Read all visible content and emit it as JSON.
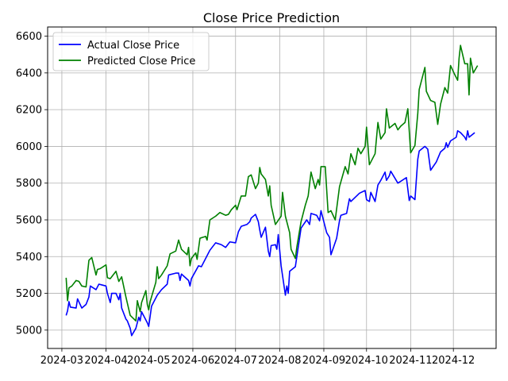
{
  "chart_data": {
    "type": "line",
    "title": "Close Price Prediction",
    "xlabel": "",
    "ylabel": "",
    "grid": true,
    "legend_position": "top-left",
    "x_tick_labels": [
      "2024-03",
      "2024-04",
      "2024-05",
      "2024-06",
      "2024-07",
      "2024-08",
      "2024-09",
      "2024-10",
      "2024-11",
      "2024-12"
    ],
    "y_tick_labels": [
      "5000",
      "5200",
      "5400",
      "5600",
      "5800",
      "6000",
      "6200",
      "6400",
      "6600"
    ],
    "ylim": [
      4900,
      6650
    ],
    "xlim": [
      "2024-02-20",
      "2024-12-31"
    ],
    "series": [
      {
        "name": "Actual Close Price",
        "color": "#0000ff",
        "points": [
          [
            "2024-03-04",
            5080
          ],
          [
            "2024-03-05",
            5105
          ],
          [
            "2024-03-06",
            5155
          ],
          [
            "2024-03-07",
            5125
          ],
          [
            "2024-03-11",
            5120
          ],
          [
            "2024-03-12",
            5170
          ],
          [
            "2024-03-15",
            5120
          ],
          [
            "2024-03-18",
            5140
          ],
          [
            "2024-03-20",
            5180
          ],
          [
            "2024-03-21",
            5240
          ],
          [
            "2024-03-25",
            5220
          ],
          [
            "2024-03-27",
            5250
          ],
          [
            "2024-04-01",
            5240
          ],
          [
            "2024-04-02",
            5200
          ],
          [
            "2024-04-04",
            5150
          ],
          [
            "2024-04-05",
            5200
          ],
          [
            "2024-04-08",
            5200
          ],
          [
            "2024-04-10",
            5165
          ],
          [
            "2024-04-11",
            5200
          ],
          [
            "2024-04-12",
            5120
          ],
          [
            "2024-04-15",
            5060
          ],
          [
            "2024-04-16",
            5050
          ],
          [
            "2024-04-18",
            5010
          ],
          [
            "2024-04-19",
            4970
          ],
          [
            "2024-04-22",
            5010
          ],
          [
            "2024-04-24",
            5070
          ],
          [
            "2024-04-25",
            5050
          ],
          [
            "2024-04-26",
            5100
          ],
          [
            "2024-04-30",
            5040
          ],
          [
            "2024-05-01",
            5020
          ],
          [
            "2024-05-03",
            5130
          ],
          [
            "2024-05-07",
            5190
          ],
          [
            "2024-05-10",
            5220
          ],
          [
            "2024-05-14",
            5250
          ],
          [
            "2024-05-15",
            5300
          ],
          [
            "2024-05-20",
            5310
          ],
          [
            "2024-05-22",
            5310
          ],
          [
            "2024-05-23",
            5270
          ],
          [
            "2024-05-24",
            5305
          ],
          [
            "2024-05-29",
            5270
          ],
          [
            "2024-05-30",
            5240
          ],
          [
            "2024-05-31",
            5280
          ],
          [
            "2024-06-05",
            5350
          ],
          [
            "2024-06-07",
            5345
          ],
          [
            "2024-06-12",
            5420
          ],
          [
            "2024-06-13",
            5435
          ],
          [
            "2024-06-17",
            5475
          ],
          [
            "2024-06-21",
            5465
          ],
          [
            "2024-06-24",
            5450
          ],
          [
            "2024-06-27",
            5480
          ],
          [
            "2024-07-01",
            5475
          ],
          [
            "2024-07-03",
            5535
          ],
          [
            "2024-07-05",
            5565
          ],
          [
            "2024-07-09",
            5575
          ],
          [
            "2024-07-11",
            5590
          ],
          [
            "2024-07-12",
            5610
          ],
          [
            "2024-07-15",
            5630
          ],
          [
            "2024-07-17",
            5590
          ],
          [
            "2024-07-18",
            5545
          ],
          [
            "2024-07-19",
            5505
          ],
          [
            "2024-07-22",
            5560
          ],
          [
            "2024-07-24",
            5430
          ],
          [
            "2024-07-25",
            5400
          ],
          [
            "2024-07-26",
            5460
          ],
          [
            "2024-07-29",
            5465
          ],
          [
            "2024-07-30",
            5440
          ],
          [
            "2024-07-31",
            5520
          ],
          [
            "2024-08-02",
            5350
          ],
          [
            "2024-08-05",
            5190
          ],
          [
            "2024-08-06",
            5240
          ],
          [
            "2024-08-07",
            5200
          ],
          [
            "2024-08-08",
            5320
          ],
          [
            "2024-08-12",
            5345
          ],
          [
            "2024-08-14",
            5450
          ],
          [
            "2024-08-16",
            5555
          ],
          [
            "2024-08-20",
            5600
          ],
          [
            "2024-08-22",
            5575
          ],
          [
            "2024-08-23",
            5635
          ],
          [
            "2024-08-27",
            5625
          ],
          [
            "2024-08-29",
            5595
          ],
          [
            "2024-08-30",
            5650
          ],
          [
            "2024-09-03",
            5530
          ],
          [
            "2024-09-05",
            5505
          ],
          [
            "2024-09-06",
            5410
          ],
          [
            "2024-09-10",
            5500
          ],
          [
            "2024-09-12",
            5595
          ],
          [
            "2024-09-13",
            5625
          ],
          [
            "2024-09-17",
            5635
          ],
          [
            "2024-09-19",
            5715
          ],
          [
            "2024-09-20",
            5700
          ],
          [
            "2024-09-24",
            5730
          ],
          [
            "2024-09-26",
            5745
          ],
          [
            "2024-09-30",
            5760
          ],
          [
            "2024-10-01",
            5710
          ],
          [
            "2024-10-03",
            5700
          ],
          [
            "2024-10-04",
            5750
          ],
          [
            "2024-10-07",
            5700
          ],
          [
            "2024-10-09",
            5790
          ],
          [
            "2024-10-11",
            5815
          ],
          [
            "2024-10-14",
            5860
          ],
          [
            "2024-10-15",
            5815
          ],
          [
            "2024-10-17",
            5840
          ],
          [
            "2024-10-18",
            5865
          ],
          [
            "2024-10-23",
            5800
          ],
          [
            "2024-10-25",
            5810
          ],
          [
            "2024-10-29",
            5830
          ],
          [
            "2024-10-31",
            5705
          ],
          [
            "2024-11-01",
            5730
          ],
          [
            "2024-11-04",
            5710
          ],
          [
            "2024-11-06",
            5930
          ],
          [
            "2024-11-07",
            5975
          ],
          [
            "2024-11-11",
            6000
          ],
          [
            "2024-11-13",
            5985
          ],
          [
            "2024-11-15",
            5870
          ],
          [
            "2024-11-19",
            5915
          ],
          [
            "2024-11-22",
            5970
          ],
          [
            "2024-11-25",
            5990
          ],
          [
            "2024-11-26",
            6020
          ],
          [
            "2024-11-27",
            5995
          ],
          [
            "2024-11-29",
            6030
          ],
          [
            "2024-12-03",
            6050
          ],
          [
            "2024-12-04",
            6085
          ],
          [
            "2024-12-06",
            6075
          ],
          [
            "2024-12-09",
            6050
          ],
          [
            "2024-12-10",
            6035
          ],
          [
            "2024-12-11",
            6085
          ],
          [
            "2024-12-12",
            6050
          ],
          [
            "2024-12-16",
            6075
          ]
        ]
      },
      {
        "name": "Predicted Close Price",
        "color": "#008000",
        "points": [
          [
            "2024-03-04",
            5285
          ],
          [
            "2024-03-05",
            5160
          ],
          [
            "2024-03-06",
            5230
          ],
          [
            "2024-03-08",
            5240
          ],
          [
            "2024-03-11",
            5270
          ],
          [
            "2024-03-13",
            5265
          ],
          [
            "2024-03-15",
            5240
          ],
          [
            "2024-03-18",
            5235
          ],
          [
            "2024-03-20",
            5380
          ],
          [
            "2024-03-22",
            5395
          ],
          [
            "2024-03-25",
            5300
          ],
          [
            "2024-03-26",
            5330
          ],
          [
            "2024-03-28",
            5335
          ],
          [
            "2024-04-01",
            5355
          ],
          [
            "2024-04-02",
            5285
          ],
          [
            "2024-04-04",
            5280
          ],
          [
            "2024-04-05",
            5290
          ],
          [
            "2024-04-08",
            5320
          ],
          [
            "2024-04-10",
            5265
          ],
          [
            "2024-04-12",
            5290
          ],
          [
            "2024-04-15",
            5180
          ],
          [
            "2024-04-18",
            5080
          ],
          [
            "2024-04-22",
            5050
          ],
          [
            "2024-04-23",
            5160
          ],
          [
            "2024-04-25",
            5100
          ],
          [
            "2024-04-26",
            5150
          ],
          [
            "2024-04-29",
            5215
          ],
          [
            "2024-04-30",
            5140
          ],
          [
            "2024-05-01",
            5110
          ],
          [
            "2024-05-02",
            5155
          ],
          [
            "2024-05-06",
            5260
          ],
          [
            "2024-05-07",
            5345
          ],
          [
            "2024-05-08",
            5280
          ],
          [
            "2024-05-10",
            5300
          ],
          [
            "2024-05-14",
            5350
          ],
          [
            "2024-05-16",
            5415
          ],
          [
            "2024-05-20",
            5430
          ],
          [
            "2024-05-22",
            5490
          ],
          [
            "2024-05-24",
            5440
          ],
          [
            "2024-05-28",
            5410
          ],
          [
            "2024-05-29",
            5450
          ],
          [
            "2024-05-30",
            5350
          ],
          [
            "2024-05-31",
            5390
          ],
          [
            "2024-06-03",
            5420
          ],
          [
            "2024-06-04",
            5385
          ],
          [
            "2024-06-06",
            5500
          ],
          [
            "2024-06-10",
            5510
          ],
          [
            "2024-06-11",
            5490
          ],
          [
            "2024-06-13",
            5600
          ],
          [
            "2024-06-17",
            5620
          ],
          [
            "2024-06-20",
            5640
          ],
          [
            "2024-06-24",
            5625
          ],
          [
            "2024-06-26",
            5630
          ],
          [
            "2024-06-28",
            5655
          ],
          [
            "2024-07-01",
            5680
          ],
          [
            "2024-07-02",
            5655
          ],
          [
            "2024-07-05",
            5730
          ],
          [
            "2024-07-08",
            5730
          ],
          [
            "2024-07-10",
            5835
          ],
          [
            "2024-07-12",
            5845
          ],
          [
            "2024-07-15",
            5770
          ],
          [
            "2024-07-17",
            5800
          ],
          [
            "2024-07-18",
            5885
          ],
          [
            "2024-07-19",
            5850
          ],
          [
            "2024-07-22",
            5820
          ],
          [
            "2024-07-24",
            5730
          ],
          [
            "2024-07-25",
            5785
          ],
          [
            "2024-07-26",
            5680
          ],
          [
            "2024-07-29",
            5575
          ],
          [
            "2024-08-02",
            5620
          ],
          [
            "2024-08-03",
            5750
          ],
          [
            "2024-08-05",
            5620
          ],
          [
            "2024-08-08",
            5530
          ],
          [
            "2024-08-09",
            5440
          ],
          [
            "2024-08-12",
            5390
          ],
          [
            "2024-08-13",
            5450
          ],
          [
            "2024-08-16",
            5590
          ],
          [
            "2024-08-19",
            5680
          ],
          [
            "2024-08-21",
            5730
          ],
          [
            "2024-08-23",
            5860
          ],
          [
            "2024-08-26",
            5770
          ],
          [
            "2024-08-28",
            5820
          ],
          [
            "2024-08-29",
            5790
          ],
          [
            "2024-08-30",
            5890
          ],
          [
            "2024-09-02",
            5890
          ],
          [
            "2024-09-04",
            5640
          ],
          [
            "2024-09-06",
            5650
          ],
          [
            "2024-09-09",
            5600
          ],
          [
            "2024-09-12",
            5780
          ],
          [
            "2024-09-16",
            5890
          ],
          [
            "2024-09-18",
            5850
          ],
          [
            "2024-09-20",
            5960
          ],
          [
            "2024-09-23",
            5900
          ],
          [
            "2024-09-25",
            5990
          ],
          [
            "2024-09-27",
            5960
          ],
          [
            "2024-09-30",
            6000
          ],
          [
            "2024-10-01",
            6105
          ],
          [
            "2024-10-03",
            5900
          ],
          [
            "2024-10-07",
            5960
          ],
          [
            "2024-10-09",
            6130
          ],
          [
            "2024-10-11",
            6040
          ],
          [
            "2024-10-14",
            6075
          ],
          [
            "2024-10-15",
            6205
          ],
          [
            "2024-10-17",
            6100
          ],
          [
            "2024-10-21",
            6125
          ],
          [
            "2024-10-23",
            6090
          ],
          [
            "2024-10-25",
            6110
          ],
          [
            "2024-10-28",
            6130
          ],
          [
            "2024-10-30",
            6205
          ],
          [
            "2024-11-01",
            5965
          ],
          [
            "2024-11-04",
            6005
          ],
          [
            "2024-11-06",
            6180
          ],
          [
            "2024-11-07",
            6310
          ],
          [
            "2024-11-11",
            6430
          ],
          [
            "2024-11-12",
            6300
          ],
          [
            "2024-11-15",
            6250
          ],
          [
            "2024-11-18",
            6240
          ],
          [
            "2024-11-20",
            6120
          ],
          [
            "2024-11-22",
            6230
          ],
          [
            "2024-11-25",
            6320
          ],
          [
            "2024-11-27",
            6290
          ],
          [
            "2024-11-29",
            6440
          ],
          [
            "2024-12-02",
            6390
          ],
          [
            "2024-12-04",
            6360
          ],
          [
            "2024-12-05",
            6480
          ],
          [
            "2024-12-06",
            6550
          ],
          [
            "2024-12-09",
            6450
          ],
          [
            "2024-12-11",
            6450
          ],
          [
            "2024-12-12",
            6280
          ],
          [
            "2024-12-13",
            6480
          ],
          [
            "2024-12-15",
            6400
          ],
          [
            "2024-12-18",
            6440
          ]
        ]
      }
    ]
  }
}
